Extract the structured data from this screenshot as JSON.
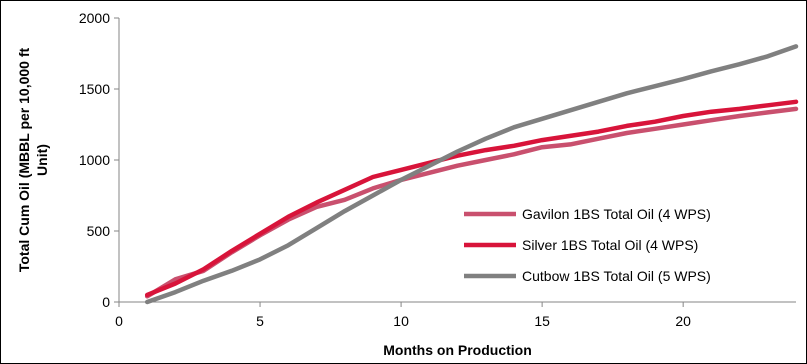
{
  "chart_data": {
    "type": "line",
    "title": "",
    "xlabel": "Months on Production",
    "ylabel": "Total Cum Oil (MBBL per 10,000 ft Unit)",
    "xlim": [
      0,
      24
    ],
    "ylim": [
      0,
      2000
    ],
    "x_ticks": [
      0,
      5,
      10,
      15,
      20
    ],
    "y_ticks": [
      0,
      500,
      1000,
      1500,
      2000
    ],
    "grid": false,
    "legend_position": "center-right",
    "series": [
      {
        "name": "Gavilon 1BS Total Oil (4 WPS)",
        "color": "#c9506e",
        "x": [
          1,
          2,
          3,
          4,
          5,
          6,
          7,
          8,
          9,
          10,
          11,
          12,
          13,
          14,
          15,
          16,
          17,
          18,
          19,
          20,
          21,
          22,
          23,
          24
        ],
        "y": [
          40,
          160,
          220,
          350,
          470,
          580,
          670,
          720,
          800,
          860,
          910,
          960,
          1000,
          1040,
          1090,
          1110,
          1150,
          1190,
          1220,
          1250,
          1280,
          1310,
          1335,
          1360
        ]
      },
      {
        "name": "Silver 1BS Total Oil (4 WPS)",
        "color": "#d8143a",
        "x": [
          1,
          2,
          3,
          4,
          5,
          6,
          7,
          8,
          9,
          10,
          11,
          12,
          13,
          14,
          15,
          16,
          17,
          18,
          19,
          20,
          21,
          22,
          23,
          24
        ],
        "y": [
          50,
          130,
          230,
          360,
          480,
          600,
          700,
          790,
          880,
          930,
          980,
          1030,
          1070,
          1100,
          1140,
          1170,
          1200,
          1240,
          1270,
          1310,
          1340,
          1360,
          1385,
          1410
        ]
      },
      {
        "name": "Cutbow 1BS Total Oil (5 WPS)",
        "color": "#808080",
        "x": [
          1,
          2,
          3,
          4,
          5,
          6,
          7,
          8,
          9,
          10,
          11,
          12,
          13,
          14,
          15,
          16,
          17,
          18,
          19,
          20,
          21,
          22,
          23,
          24
        ],
        "y": [
          0,
          70,
          150,
          220,
          300,
          400,
          520,
          640,
          750,
          860,
          960,
          1060,
          1150,
          1230,
          1290,
          1350,
          1410,
          1470,
          1520,
          1570,
          1625,
          1675,
          1730,
          1800
        ]
      }
    ]
  }
}
